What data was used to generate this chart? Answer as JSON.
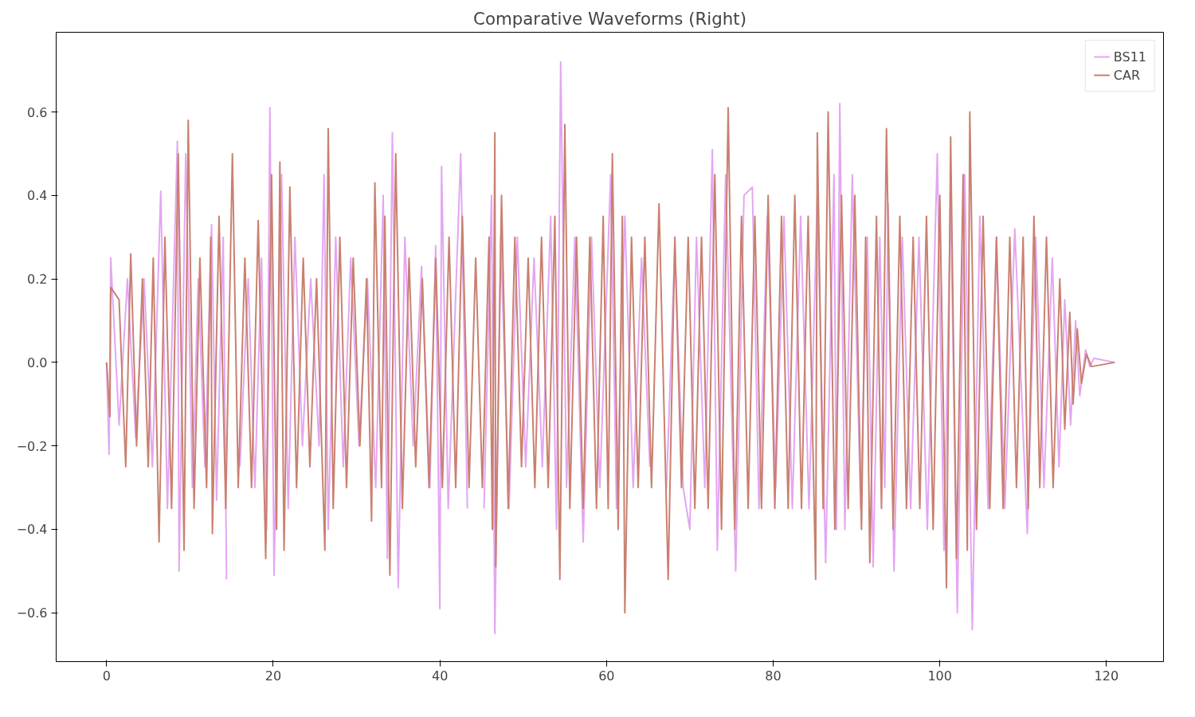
{
  "chart_data": {
    "type": "line",
    "title": "Comparative Waveforms (Right)",
    "xlim": [
      -6.05,
      126.85
    ],
    "ylim": [
      -0.717,
      0.791
    ],
    "xticks": [
      0,
      20,
      40,
      60,
      80,
      100,
      120
    ],
    "yticks": [
      {
        "value": -0.6,
        "label": "−0.6"
      },
      {
        "value": -0.4,
        "label": "−0.4"
      },
      {
        "value": -0.2,
        "label": "−0.2"
      },
      {
        "value": 0,
        "label": "0.0"
      },
      {
        "value": 0.2,
        "label": "0.2"
      },
      {
        "value": 0.4,
        "label": "0.4"
      },
      {
        "value": 0.6,
        "label": "0.6"
      }
    ],
    "grid": false,
    "legend": "top right",
    "marker": "none",
    "line_style": "solid",
    "series": [
      {
        "name": "BS11",
        "color": "#e4a6f2",
        "x": [
          0,
          0.3,
          0.5,
          1.5,
          2.5,
          3.5,
          4.5,
          5.5,
          6.5,
          7.3,
          8.5,
          8.7,
          9.5,
          10.3,
          11,
          11.8,
          12.6,
          13.2,
          14,
          14.4,
          15.2,
          16,
          17,
          17.8,
          18.6,
          19.2,
          19.6,
          20.1,
          21,
          21.8,
          22.6,
          23.5,
          24.5,
          25.5,
          26.1,
          26.6,
          27.5,
          28.4,
          29.3,
          30.3,
          31.3,
          32.3,
          33.2,
          33.7,
          34.3,
          35.0,
          35.8,
          36.8,
          37.8,
          38.8,
          39.5,
          40.0,
          40.2,
          41,
          42.5,
          43.3,
          44.3,
          45.3,
          46.2,
          46.6,
          47.3,
          48.3,
          49.3,
          50.3,
          51.3,
          52.3,
          53.3,
          54,
          54.5,
          55.2,
          56.2,
          57.2,
          58.2,
          59.2,
          60.5,
          61.2,
          62.2,
          63.2,
          64.2,
          65.2,
          66.2,
          67.2,
          68.2,
          69.2,
          70.0,
          70.8,
          71.8,
          72.7,
          73.3,
          74.3,
          75.5,
          76.5,
          77.5,
          78.3,
          79.3,
          80.3,
          81.3,
          82.3,
          83.3,
          84.3,
          85.3,
          86.3,
          87.3,
          87.6,
          88.0,
          88.6,
          89.5,
          90.5,
          91.3,
          92,
          92.8,
          93.4,
          93.8,
          94.5,
          95.5,
          96.5,
          97.5,
          98.5,
          99.7,
          100.5,
          101.3,
          102.1,
          103,
          103.9,
          104.8,
          105.8,
          106.8,
          107.8,
          109,
          110.5,
          111.5,
          112.5,
          113.5,
          114.3,
          115,
          115.7,
          116.3,
          116.8,
          117.5,
          118,
          118.5,
          121
        ],
        "values": [
          0,
          -0.22,
          0.25,
          -0.15,
          0.2,
          -0.18,
          0.2,
          -0.25,
          0.41,
          -0.35,
          0.53,
          -0.5,
          0.5,
          -0.3,
          0.2,
          -0.25,
          0.33,
          -0.33,
          0.3,
          -0.52,
          null,
          -0.25,
          0.2,
          -0.3,
          0.25,
          -0.4,
          0.61,
          -0.51,
          0.45,
          -0.35,
          0.3,
          -0.2,
          0.2,
          -0.2,
          0.45,
          -0.4,
          0.3,
          -0.25,
          0.25,
          -0.2,
          0.2,
          -0.3,
          0.4,
          -0.47,
          0.55,
          -0.54,
          0.3,
          -0.2,
          0.23,
          -0.3,
          0.28,
          -0.59,
          0.47,
          -0.35,
          0.5,
          -0.35,
          null,
          -0.35,
          0.4,
          -0.65,
          0.3,
          -0.35,
          0.3,
          -0.25,
          0.25,
          -0.25,
          0.35,
          -0.4,
          0.72,
          -0.3,
          0.3,
          -0.43,
          0.3,
          -0.3,
          0.45,
          -0.35,
          0.35,
          -0.3,
          0.25,
          -0.25,
          null,
          -0.3,
          0.28,
          -0.3,
          -0.4,
          0.3,
          -0.3,
          0.51,
          -0.45,
          0.45,
          -0.5,
          0.4,
          0.42,
          -0.35,
          0.35,
          -0.3,
          0.35,
          -0.35,
          0.35,
          -0.35,
          0.4,
          -0.48,
          0.45,
          -0.4,
          0.62,
          -0.4,
          0.45,
          -0.35,
          0.3,
          -0.49,
          0.3,
          -0.3,
          0.38,
          -0.5,
          0.3,
          -0.35,
          0.3,
          -0.4,
          0.5,
          -0.45,
          0.4,
          -0.6,
          0.45,
          -0.64,
          0.35,
          -0.35,
          0.3,
          -0.35,
          0.32,
          -0.41,
          0.3,
          -0.3,
          0.25,
          -0.25,
          0.15,
          -0.15,
          0.1,
          -0.08,
          0.03,
          -0.01,
          0.01,
          0
        ]
      },
      {
        "name": "CAR",
        "color": "#c98070",
        "x": [
          0,
          0.4,
          0.5,
          1.5,
          2.3,
          2.9,
          3.6,
          4.3,
          5,
          5.6,
          6.3,
          7,
          7.8,
          8.6,
          9.3,
          9.8,
          10.5,
          11.2,
          12,
          12.5,
          12.7,
          13.5,
          14.3,
          15.1,
          15.8,
          16.6,
          17.4,
          18.2,
          19.1,
          19.8,
          20.4,
          20.8,
          21.3,
          22,
          22.8,
          23.6,
          24.4,
          25.2,
          26.2,
          26.6,
          27.2,
          28,
          28.8,
          29.6,
          30.4,
          31.2,
          31.8,
          32.2,
          33,
          33.4,
          34.0,
          34.7,
          35.5,
          36.3,
          37.1,
          37.9,
          38.7,
          39.5,
          40.3,
          41.1,
          41.9,
          42.7,
          43.5,
          44.3,
          45.1,
          45.9,
          46.3,
          46.6,
          46.7,
          47.4,
          48.2,
          49,
          49.8,
          50.6,
          51.4,
          52.2,
          53,
          53.8,
          54.4,
          55.0,
          55.6,
          56.4,
          57.2,
          58,
          58.8,
          59.6,
          60.2,
          60.7,
          61.4,
          61.9,
          62.2,
          63,
          63.8,
          64.6,
          65.4,
          66.3,
          67.4,
          68.2,
          69,
          69.8,
          70.6,
          71.4,
          72.2,
          73,
          73.8,
          74.6,
          75.4,
          76.2,
          77,
          77.8,
          78.6,
          79.4,
          80.2,
          81,
          81.8,
          82.6,
          83.4,
          84.2,
          85.1,
          85.3,
          86,
          86.6,
          87.4,
          88.2,
          89,
          89.8,
          90.6,
          91.1,
          91.6,
          92.4,
          93,
          93.6,
          94.4,
          95.2,
          96,
          96.8,
          97.6,
          98.4,
          99.2,
          100,
          100.8,
          101.3,
          102.0,
          102.8,
          103.3,
          103.6,
          104.4,
          105.2,
          106,
          106.8,
          107.6,
          108.4,
          109.2,
          110,
          110.6,
          111.3,
          112,
          112.8,
          113.6,
          114.4,
          115,
          115.6,
          116,
          116.5,
          117,
          117.6,
          118.2,
          121
        ],
        "values": [
          0,
          -0.13,
          0.18,
          0.15,
          -0.25,
          0.26,
          -0.2,
          0.2,
          -0.25,
          0.25,
          -0.43,
          0.3,
          -0.35,
          0.5,
          -0.45,
          0.58,
          -0.35,
          0.25,
          -0.3,
          0.3,
          -0.41,
          0.35,
          -0.35,
          0.5,
          -0.3,
          0.25,
          -0.3,
          0.34,
          -0.47,
          0.45,
          -0.4,
          0.48,
          -0.45,
          0.42,
          -0.3,
          0.25,
          -0.25,
          0.2,
          -0.45,
          0.56,
          -0.35,
          0.3,
          -0.3,
          0.25,
          -0.2,
          0.2,
          -0.38,
          0.43,
          -0.3,
          0.35,
          -0.51,
          0.5,
          -0.35,
          0.25,
          -0.25,
          0.2,
          -0.3,
          0.25,
          -0.3,
          0.3,
          -0.3,
          0.35,
          -0.3,
          0.25,
          -0.3,
          0.3,
          -0.4,
          0.55,
          -0.49,
          0.4,
          -0.35,
          0.3,
          -0.25,
          0.25,
          -0.3,
          0.3,
          -0.3,
          0.35,
          -0.52,
          0.57,
          -0.35,
          0.3,
          -0.35,
          0.3,
          -0.35,
          0.35,
          -0.35,
          0.5,
          -0.4,
          0.35,
          -0.6,
          0.3,
          -0.3,
          0.3,
          -0.3,
          0.38,
          -0.52,
          0.3,
          -0.3,
          0.3,
          -0.35,
          0.3,
          -0.35,
          0.45,
          -0.4,
          0.61,
          -0.4,
          0.35,
          -0.35,
          0.35,
          -0.35,
          0.4,
          -0.35,
          0.35,
          -0.35,
          0.4,
          -0.35,
          0.35,
          -0.52,
          0.55,
          -0.35,
          0.6,
          -0.4,
          0.4,
          -0.35,
          0.4,
          -0.4,
          0.3,
          -0.48,
          0.35,
          -0.35,
          0.56,
          -0.4,
          0.35,
          -0.35,
          0.3,
          -0.35,
          0.35,
          -0.4,
          0.4,
          -0.54,
          0.54,
          -0.47,
          0.45,
          -0.45,
          0.6,
          -0.4,
          0.35,
          -0.35,
          0.3,
          -0.35,
          0.3,
          -0.3,
          0.3,
          -0.35,
          0.35,
          -0.3,
          0.3,
          -0.3,
          0.2,
          -0.16,
          0.12,
          -0.1,
          0.08,
          -0.05,
          0.02,
          -0.01,
          0
        ]
      }
    ]
  }
}
